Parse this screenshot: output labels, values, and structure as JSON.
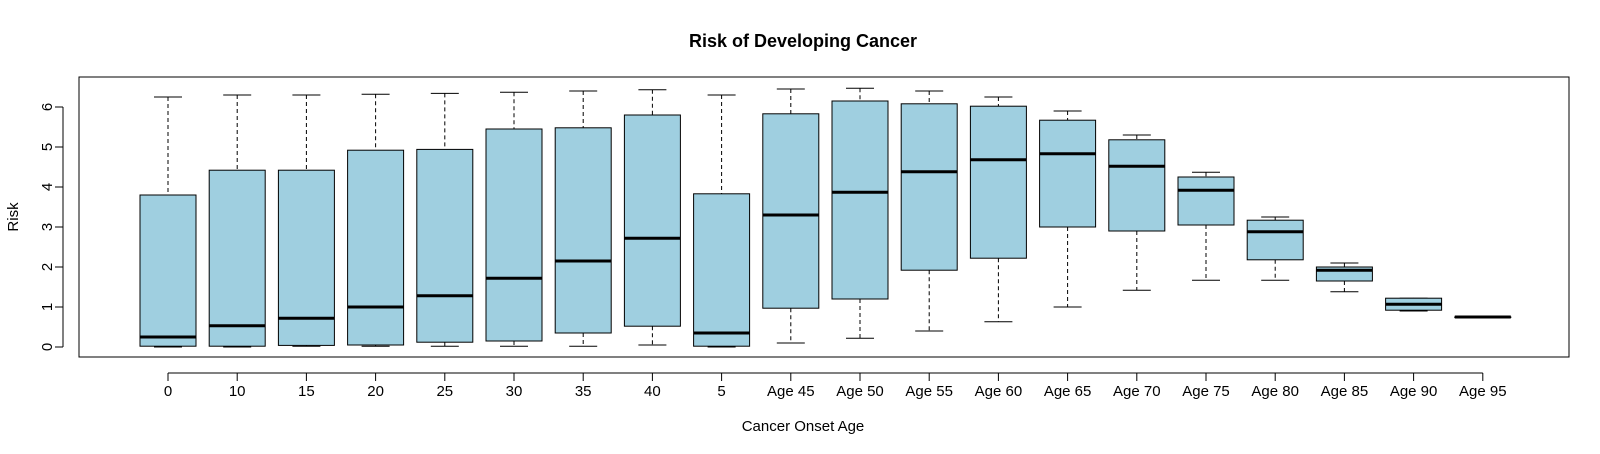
{
  "chart_data": {
    "type": "boxplot",
    "title": "Risk of Developing Cancer",
    "xlabel": "Cancer Onset Age",
    "ylabel": "Risk",
    "ylim": [
      -0.25,
      6.75
    ],
    "yticks": [
      0,
      1,
      2,
      3,
      4,
      5,
      6
    ],
    "grid": false,
    "box_color": "#9fcfe0",
    "categories": [
      "0",
      "10",
      "15",
      "20",
      "25",
      "30",
      "35",
      "40",
      "5",
      "Age 45",
      "Age 50",
      "Age 55",
      "Age 60",
      "Age 65",
      "Age 70",
      "Age 75",
      "Age 80",
      "Age 85",
      "Age 90",
      "Age 95"
    ],
    "boxes": [
      {
        "min": 0.0,
        "q1": 0.02,
        "median": 0.25,
        "q3": 3.8,
        "max": 6.25
      },
      {
        "min": 0.0,
        "q1": 0.02,
        "median": 0.53,
        "q3": 4.42,
        "max": 6.3
      },
      {
        "min": 0.02,
        "q1": 0.04,
        "median": 0.72,
        "q3": 4.42,
        "max": 6.3
      },
      {
        "min": 0.02,
        "q1": 0.05,
        "median": 1.0,
        "q3": 4.92,
        "max": 6.32
      },
      {
        "min": 0.02,
        "q1": 0.12,
        "median": 1.28,
        "q3": 4.94,
        "max": 6.34
      },
      {
        "min": 0.02,
        "q1": 0.15,
        "median": 1.72,
        "q3": 5.45,
        "max": 6.37
      },
      {
        "min": 0.02,
        "q1": 0.35,
        "median": 2.15,
        "q3": 5.48,
        "max": 6.4
      },
      {
        "min": 0.05,
        "q1": 0.52,
        "median": 2.72,
        "q3": 5.8,
        "max": 6.43
      },
      {
        "min": 0.0,
        "q1": 0.02,
        "median": 0.35,
        "q3": 3.83,
        "max": 6.3
      },
      {
        "min": 0.1,
        "q1": 0.97,
        "median": 3.3,
        "q3": 5.83,
        "max": 6.45
      },
      {
        "min": 0.22,
        "q1": 1.2,
        "median": 3.87,
        "q3": 6.15,
        "max": 6.47
      },
      {
        "min": 0.4,
        "q1": 1.92,
        "median": 4.38,
        "q3": 6.08,
        "max": 6.4
      },
      {
        "min": 0.63,
        "q1": 2.22,
        "median": 4.68,
        "q3": 6.02,
        "max": 6.25
      },
      {
        "min": 1.0,
        "q1": 3.0,
        "median": 4.83,
        "q3": 5.67,
        "max": 5.9
      },
      {
        "min": 1.42,
        "q1": 2.9,
        "median": 4.52,
        "q3": 5.18,
        "max": 5.3
      },
      {
        "min": 1.67,
        "q1": 3.05,
        "median": 3.92,
        "q3": 4.25,
        "max": 4.37
      },
      {
        "min": 1.67,
        "q1": 2.18,
        "median": 2.88,
        "q3": 3.17,
        "max": 3.25
      },
      {
        "min": 1.38,
        "q1": 1.65,
        "median": 1.92,
        "q3": 2.0,
        "max": 2.1
      },
      {
        "min": 0.9,
        "q1": 0.92,
        "median": 1.07,
        "q3": 1.22,
        "max": 1.22
      },
      {
        "min": 0.75,
        "q1": 0.75,
        "median": 0.75,
        "q3": 0.75,
        "max": 0.75
      }
    ]
  }
}
